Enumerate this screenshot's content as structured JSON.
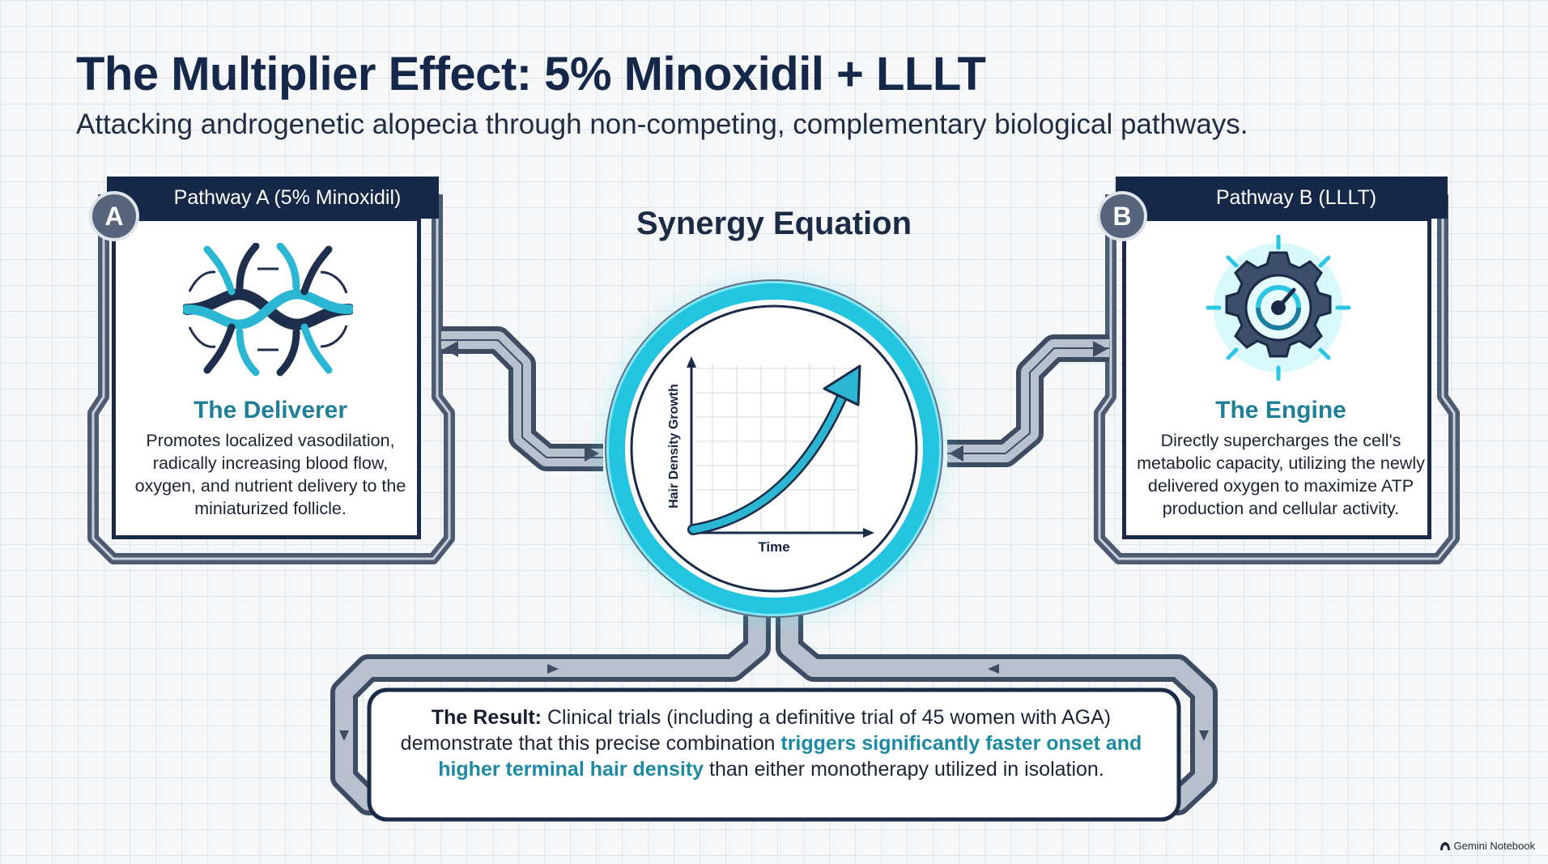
{
  "header": {
    "title": "The Multiplier Effect: 5% Minoxidil + LLLT",
    "subtitle": "Attacking androgenetic alopecia through non-competing, complementary biological pathways."
  },
  "pathway_a": {
    "badge": "A",
    "tab_label": "Pathway A (5% Minoxidil)",
    "icon": "blood-vessel-network-icon",
    "heading": "The Deliverer",
    "body": "Promotes localized vasodilation, radically increasing blood flow, oxygen, and nutrient delivery to the miniaturized follicle."
  },
  "pathway_b": {
    "badge": "B",
    "tab_label": "Pathway B (LLLT)",
    "icon": "glowing-gear-icon",
    "heading": "The Engine",
    "body": "Directly supercharges the cell's metabolic capacity, utilizing the newly delivered oxygen to maximize ATP production and cellular activity."
  },
  "synergy": {
    "title": "Synergy Equation",
    "y_label": "Hair Density Growth",
    "x_label": "Time"
  },
  "result": {
    "lead": "The Result:",
    "text_1": " Clinical trials (including a definitive trial of 45 women with AGA) demonstrate that this precise combination ",
    "highlight": "triggers significantly faster onset and higher terminal hair density",
    "text_2": " than either monotherapy utilized in isolation."
  },
  "watermark": {
    "label": "Gemini Notebook",
    "icon": "notebook-logo-icon"
  },
  "colors": {
    "navy": "#162847",
    "teal": "#1e7f96",
    "cyan_glow": "#35d6ee",
    "highlight": "#1d8aa3"
  }
}
